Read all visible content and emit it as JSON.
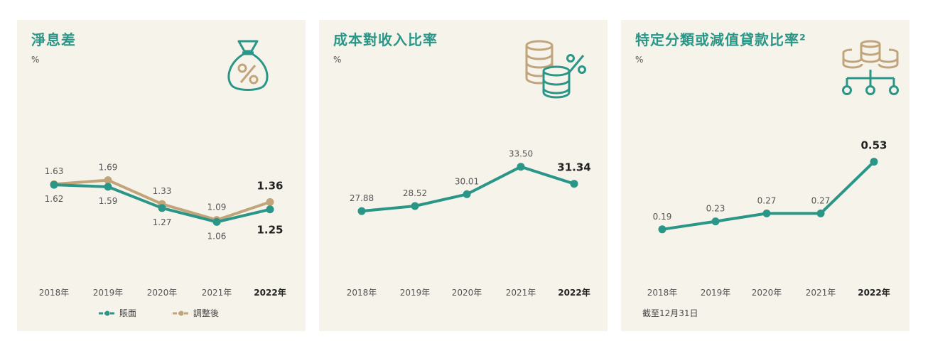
{
  "colors": {
    "teal": "#2a9688",
    "tan": "#c2a47a",
    "panel_bg": "#f6f3ea",
    "label": "#555555"
  },
  "icons": [
    "money-bag-percent-icon",
    "coin-stack-percent-icon",
    "coin-stack-network-icon"
  ],
  "chart_data": [
    {
      "type": "line",
      "title": "淨息差",
      "ylabel": "%",
      "categories": [
        "2018年",
        "2019年",
        "2020年",
        "2021年",
        "2022年"
      ],
      "series": [
        {
          "name": "賬面",
          "values": [
            1.62,
            1.59,
            1.27,
            1.06,
            1.25
          ],
          "labels": [
            "1.62",
            "1.59",
            "1.27",
            "1.06",
            "1.25"
          ],
          "color": "#2a9688"
        },
        {
          "name": "調整後",
          "values": [
            1.63,
            1.69,
            1.33,
            1.09,
            1.36
          ],
          "labels": [
            "1.63",
            "1.69",
            "1.33",
            "1.09",
            "1.36"
          ],
          "color": "#c2a47a"
        }
      ],
      "highlight_last": true,
      "legend": "bottom"
    },
    {
      "type": "line",
      "title": "成本對收入比率",
      "ylabel": "%",
      "categories": [
        "2018年",
        "2019年",
        "2020年",
        "2021年",
        "2022年"
      ],
      "series": [
        {
          "values": [
            27.88,
            28.52,
            30.01,
            33.5,
            31.34
          ],
          "labels": [
            "27.88",
            "28.52",
            "30.01",
            "33.50",
            "31.34"
          ],
          "color": "#2a9688"
        }
      ],
      "highlight_last": true
    },
    {
      "type": "line",
      "title": "特定分類或減值貸款比率²",
      "ylabel": "%",
      "footnote": "截至12月31日",
      "categories": [
        "2018年",
        "2019年",
        "2020年",
        "2021年",
        "2022年"
      ],
      "series": [
        {
          "values": [
            0.19,
            0.23,
            0.27,
            0.27,
            0.53
          ],
          "labels": [
            "0.19",
            "0.23",
            "0.27",
            "0.27",
            "0.53"
          ],
          "color": "#2a9688"
        }
      ],
      "highlight_last": true
    }
  ]
}
